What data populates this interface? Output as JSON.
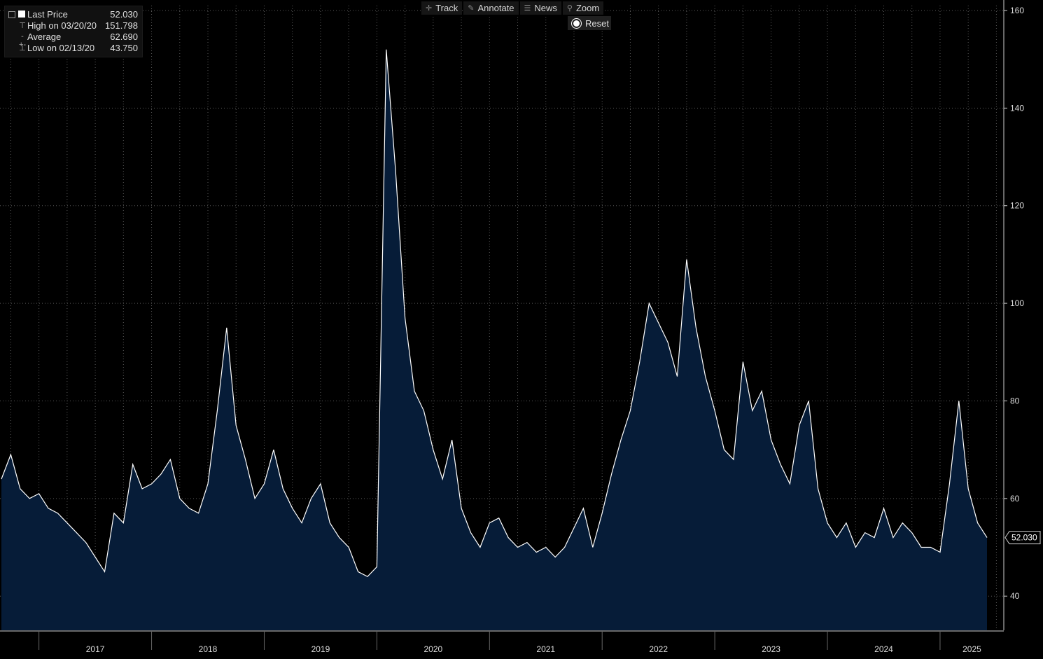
{
  "legend": {
    "last_label": "Last Price",
    "last_value": "52.030",
    "high_label": "High on 03/20/20",
    "high_value": "151.798",
    "avg_label": "Average",
    "avg_value": "62.690",
    "low_label": "Low on 02/13/20",
    "low_value": "43.750"
  },
  "toolbar": {
    "track": "Track",
    "annotate": "Annotate",
    "news": "News",
    "zoom": "Zoom",
    "reset": "Reset"
  },
  "last_tag": "52.030",
  "colors": {
    "background": "#000000",
    "area_fill": "#061c38",
    "line": "#ffffff",
    "grid": "#5a5a5a"
  },
  "chart_data": {
    "type": "area",
    "x_axis": "date",
    "ylim": [
      33,
      161
    ],
    "y_ticks": [
      40,
      60,
      80,
      100,
      120,
      140,
      160
    ],
    "x_tick_labels": [
      "2017",
      "2018",
      "2019",
      "2020",
      "2021",
      "2022",
      "2023",
      "2024",
      "2025"
    ],
    "grid": true,
    "legend_position": "top-left",
    "x": [
      "2016-09",
      "2016-10",
      "2016-11",
      "2016-12",
      "2017-01",
      "2017-02",
      "2017-03",
      "2017-04",
      "2017-05",
      "2017-06",
      "2017-07",
      "2017-08",
      "2017-09",
      "2017-10",
      "2017-11",
      "2017-12",
      "2018-01",
      "2018-02",
      "2018-03",
      "2018-04",
      "2018-05",
      "2018-06",
      "2018-07",
      "2018-08",
      "2018-09",
      "2018-10",
      "2018-11",
      "2018-12",
      "2019-01",
      "2019-02",
      "2019-03",
      "2019-04",
      "2019-05",
      "2019-06",
      "2019-07",
      "2019-08",
      "2019-09",
      "2019-10",
      "2019-11",
      "2019-12",
      "2020-01",
      "2020-02",
      "2020-03",
      "2020-04",
      "2020-05",
      "2020-06",
      "2020-07",
      "2020-08",
      "2020-09",
      "2020-10",
      "2020-11",
      "2020-12",
      "2021-01",
      "2021-02",
      "2021-03",
      "2021-04",
      "2021-05",
      "2021-06",
      "2021-07",
      "2021-08",
      "2021-09",
      "2021-10",
      "2021-11",
      "2021-12",
      "2022-01",
      "2022-02",
      "2022-03",
      "2022-04",
      "2022-05",
      "2022-06",
      "2022-07",
      "2022-08",
      "2022-09",
      "2022-10",
      "2022-11",
      "2022-12",
      "2023-01",
      "2023-02",
      "2023-03",
      "2023-04",
      "2023-05",
      "2023-06",
      "2023-07",
      "2023-08",
      "2023-09",
      "2023-10",
      "2023-11",
      "2023-12",
      "2024-01",
      "2024-02",
      "2024-03",
      "2024-04",
      "2024-05",
      "2024-06",
      "2024-07",
      "2024-08",
      "2024-09",
      "2024-10",
      "2024-11",
      "2024-12",
      "2025-01",
      "2025-02",
      "2025-03",
      "2025-04",
      "2025-05",
      "2025-06"
    ],
    "values": [
      64,
      69,
      62,
      60,
      61,
      58,
      57,
      55,
      53,
      51,
      48,
      45,
      57,
      55,
      67,
      62,
      63,
      65,
      68,
      60,
      58,
      57,
      63,
      78,
      95,
      75,
      68,
      60,
      63,
      70,
      62,
      58,
      55,
      60,
      63,
      55,
      52,
      50,
      45,
      44,
      46,
      152,
      127,
      97,
      82,
      78,
      70,
      64,
      72,
      58,
      53,
      50,
      55,
      56,
      52,
      50,
      51,
      49,
      50,
      48,
      50,
      54,
      58,
      50,
      57,
      65,
      72,
      78,
      88,
      100,
      96,
      92,
      85,
      109,
      95,
      85,
      78,
      70,
      68,
      88,
      78,
      82,
      72,
      67,
      63,
      75,
      80,
      62,
      55,
      52,
      55,
      50,
      53,
      52,
      58,
      52,
      55,
      53,
      50,
      50,
      49,
      63,
      80,
      62,
      55,
      52
    ]
  }
}
